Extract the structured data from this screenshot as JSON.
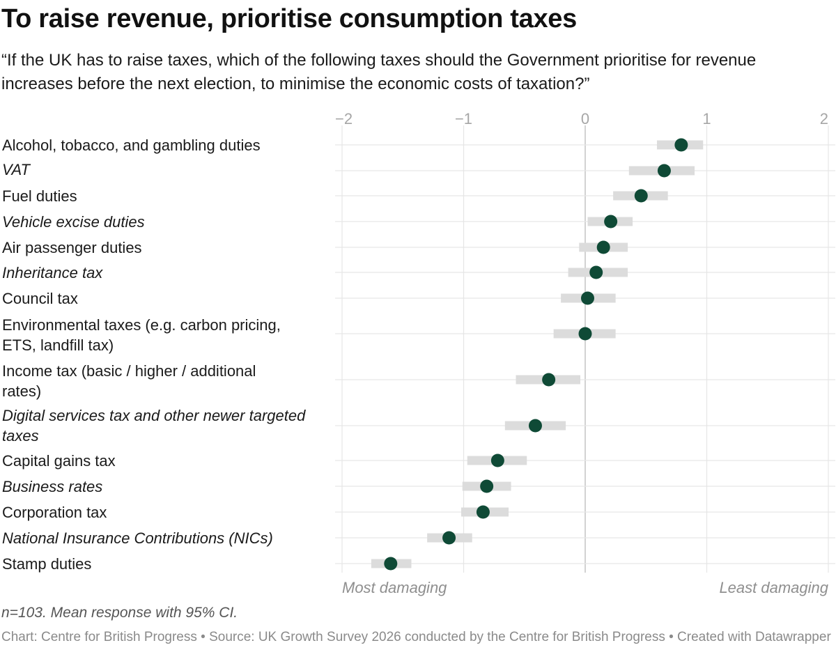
{
  "header": {
    "title": "To raise revenue, prioritise consumption taxes",
    "subtitle": "“If the UK has to raise taxes, which of the following taxes should the Government prioritise for revenue increases before the next election, to minimise the economic costs of taxation?”"
  },
  "chart_data": {
    "type": "dot-with-error-bars",
    "x_ticks": [
      "−2",
      "−1",
      "0",
      "1",
      "2"
    ],
    "x_tick_values": [
      -2,
      -1,
      0,
      1,
      2
    ],
    "xlim": [
      -2,
      2
    ],
    "x_end_labels": {
      "left": "Most damaging",
      "right": "Least damaging"
    },
    "grid": true,
    "colors": {
      "dot": "#0f4a36",
      "ci": "#dcdcdc",
      "grid": "#e6e6e6",
      "zero_line": "#c4c4c4"
    },
    "categories": [
      {
        "label": "Alcohol, tobacco, and gambling duties",
        "lines": [
          "Alcohol, tobacco, and gambling duties"
        ],
        "italic": false,
        "mean": 0.79,
        "ci_low": 0.59,
        "ci_high": 0.97
      },
      {
        "label": "VAT",
        "lines": [
          "VAT"
        ],
        "italic": true,
        "mean": 0.65,
        "ci_low": 0.36,
        "ci_high": 0.9
      },
      {
        "label": "Fuel duties",
        "lines": [
          "Fuel duties"
        ],
        "italic": false,
        "mean": 0.46,
        "ci_low": 0.23,
        "ci_high": 0.68
      },
      {
        "label": "Vehicle excise duties",
        "lines": [
          "Vehicle excise duties"
        ],
        "italic": true,
        "mean": 0.21,
        "ci_low": 0.02,
        "ci_high": 0.39
      },
      {
        "label": "Air passenger duties",
        "lines": [
          "Air passenger duties"
        ],
        "italic": false,
        "mean": 0.15,
        "ci_low": -0.05,
        "ci_high": 0.35
      },
      {
        "label": "Inheritance tax",
        "lines": [
          "Inheritance tax"
        ],
        "italic": true,
        "mean": 0.09,
        "ci_low": -0.14,
        "ci_high": 0.35
      },
      {
        "label": "Council tax",
        "lines": [
          "Council tax"
        ],
        "italic": false,
        "mean": 0.02,
        "ci_low": -0.2,
        "ci_high": 0.25
      },
      {
        "label": "Environmental taxes (e.g. carbon pricing, ETS, landfill tax)",
        "lines": [
          "Environmental taxes (e.g. carbon pricing,",
          "ETS, landfill tax)"
        ],
        "italic": false,
        "mean": 0.0,
        "ci_low": -0.26,
        "ci_high": 0.25
      },
      {
        "label": "Income tax (basic / higher / additional rates)",
        "lines": [
          "Income tax (basic / higher / additional",
          "rates)"
        ],
        "italic": false,
        "mean": -0.3,
        "ci_low": -0.57,
        "ci_high": -0.04
      },
      {
        "label": "Digital services tax and other newer targeted taxes",
        "lines": [
          "Digital services tax and other newer targeted",
          "taxes"
        ],
        "italic": true,
        "mean": -0.41,
        "ci_low": -0.66,
        "ci_high": -0.16
      },
      {
        "label": "Capital gains tax",
        "lines": [
          "Capital gains tax"
        ],
        "italic": false,
        "mean": -0.72,
        "ci_low": -0.97,
        "ci_high": -0.48
      },
      {
        "label": "Business rates",
        "lines": [
          "Business rates"
        ],
        "italic": true,
        "mean": -0.81,
        "ci_low": -1.01,
        "ci_high": -0.61
      },
      {
        "label": "Corporation tax",
        "lines": [
          "Corporation tax"
        ],
        "italic": false,
        "mean": -0.84,
        "ci_low": -1.02,
        "ci_high": -0.63
      },
      {
        "label": "National Insurance Contributions (NICs)",
        "lines": [
          "National Insurance Contributions (NICs)"
        ],
        "italic": true,
        "mean": -1.12,
        "ci_low": -1.3,
        "ci_high": -0.93
      },
      {
        "label": "Stamp duties",
        "lines": [
          "Stamp duties"
        ],
        "italic": false,
        "mean": -1.6,
        "ci_low": -1.76,
        "ci_high": -1.43
      }
    ]
  },
  "notes": {
    "sample": "n=103. Mean response with 95% CI.",
    "footer": "Chart: Centre for British Progress • Source: UK Growth Survey 2026 conducted by the Centre for British Progress • Created with Datawrapper"
  }
}
